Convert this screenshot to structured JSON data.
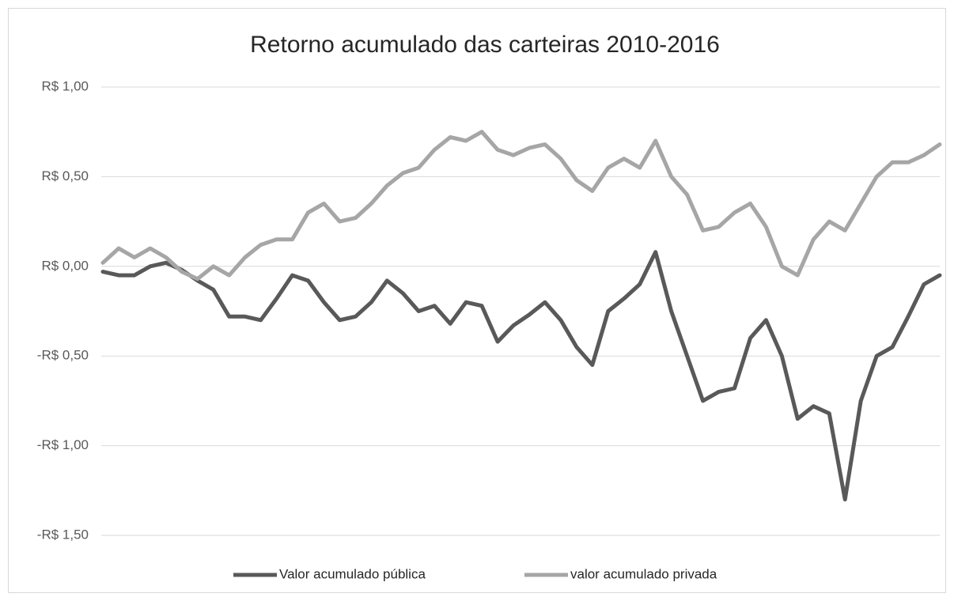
{
  "chart_data": {
    "type": "line",
    "title": "Retorno acumulado das carteiras 2010-2016",
    "ylim": [
      -1.5,
      1.0
    ],
    "yticks": [
      {
        "value": -1.5,
        "label": "-R$ 1,50"
      },
      {
        "value": -1.0,
        "label": "-R$ 1,00"
      },
      {
        "value": -0.5,
        "label": "-R$ 0,50"
      },
      {
        "value": 0,
        "label": "R$ 0,00"
      },
      {
        "value": 0.5,
        "label": "R$ 0,50"
      },
      {
        "value": 1.0,
        "label": "R$ 1,00"
      }
    ],
    "grid": true,
    "legend": "bottom",
    "series": [
      {
        "name": "Valor acumulado pública",
        "color": "#595959",
        "values": [
          -0.03,
          -0.05,
          -0.05,
          0.0,
          0.02,
          -0.02,
          -0.08,
          -0.13,
          -0.28,
          -0.28,
          -0.3,
          -0.18,
          -0.05,
          -0.08,
          -0.2,
          -0.3,
          -0.28,
          -0.2,
          -0.08,
          -0.15,
          -0.25,
          -0.22,
          -0.32,
          -0.2,
          -0.22,
          -0.42,
          -0.33,
          -0.27,
          -0.2,
          -0.3,
          -0.45,
          -0.55,
          -0.25,
          -0.18,
          -0.1,
          0.08,
          -0.25,
          -0.5,
          -0.75,
          -0.7,
          -0.68,
          -0.4,
          -0.3,
          -0.5,
          -0.85,
          -0.78,
          -0.82,
          -1.3,
          -0.75,
          -0.5,
          -0.45,
          -0.28,
          -0.1,
          -0.05
        ]
      },
      {
        "name": "valor acumulado privada",
        "color": "#a6a6a6",
        "values": [
          0.02,
          0.1,
          0.05,
          0.1,
          0.05,
          -0.03,
          -0.07,
          0.0,
          -0.05,
          0.05,
          0.12,
          0.15,
          0.15,
          0.3,
          0.35,
          0.25,
          0.27,
          0.35,
          0.45,
          0.52,
          0.55,
          0.65,
          0.72,
          0.7,
          0.75,
          0.65,
          0.62,
          0.66,
          0.68,
          0.6,
          0.48,
          0.42,
          0.55,
          0.6,
          0.55,
          0.7,
          0.5,
          0.4,
          0.2,
          0.22,
          0.3,
          0.35,
          0.22,
          0.0,
          -0.05,
          0.15,
          0.25,
          0.2,
          0.35,
          0.5,
          0.58,
          0.58,
          0.62,
          0.68
        ]
      }
    ]
  }
}
